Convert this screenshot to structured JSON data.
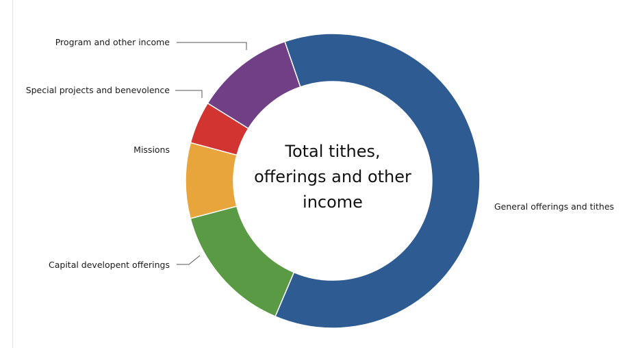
{
  "chart_data": {
    "type": "donut",
    "title": "Total tithes, offerings and other income",
    "center_lines": [
      "Total tithes,",
      "offerings and other",
      "income"
    ],
    "unit": "percent",
    "legend": "none",
    "slices": [
      {
        "label": "General offerings and tithes",
        "value": 59.5,
        "color": "#2e5b92"
      },
      {
        "label": "Capital developent offerings",
        "value": 14.0,
        "color": "#5b9a44"
      },
      {
        "label": "Missions",
        "value": 8.0,
        "color": "#e7a53b"
      },
      {
        "label": "Special projects and benevolence",
        "value": 4.5,
        "color": "#d23431"
      },
      {
        "label": "Program and other income",
        "value": 10.5,
        "color": "#713f85"
      }
    ]
  }
}
